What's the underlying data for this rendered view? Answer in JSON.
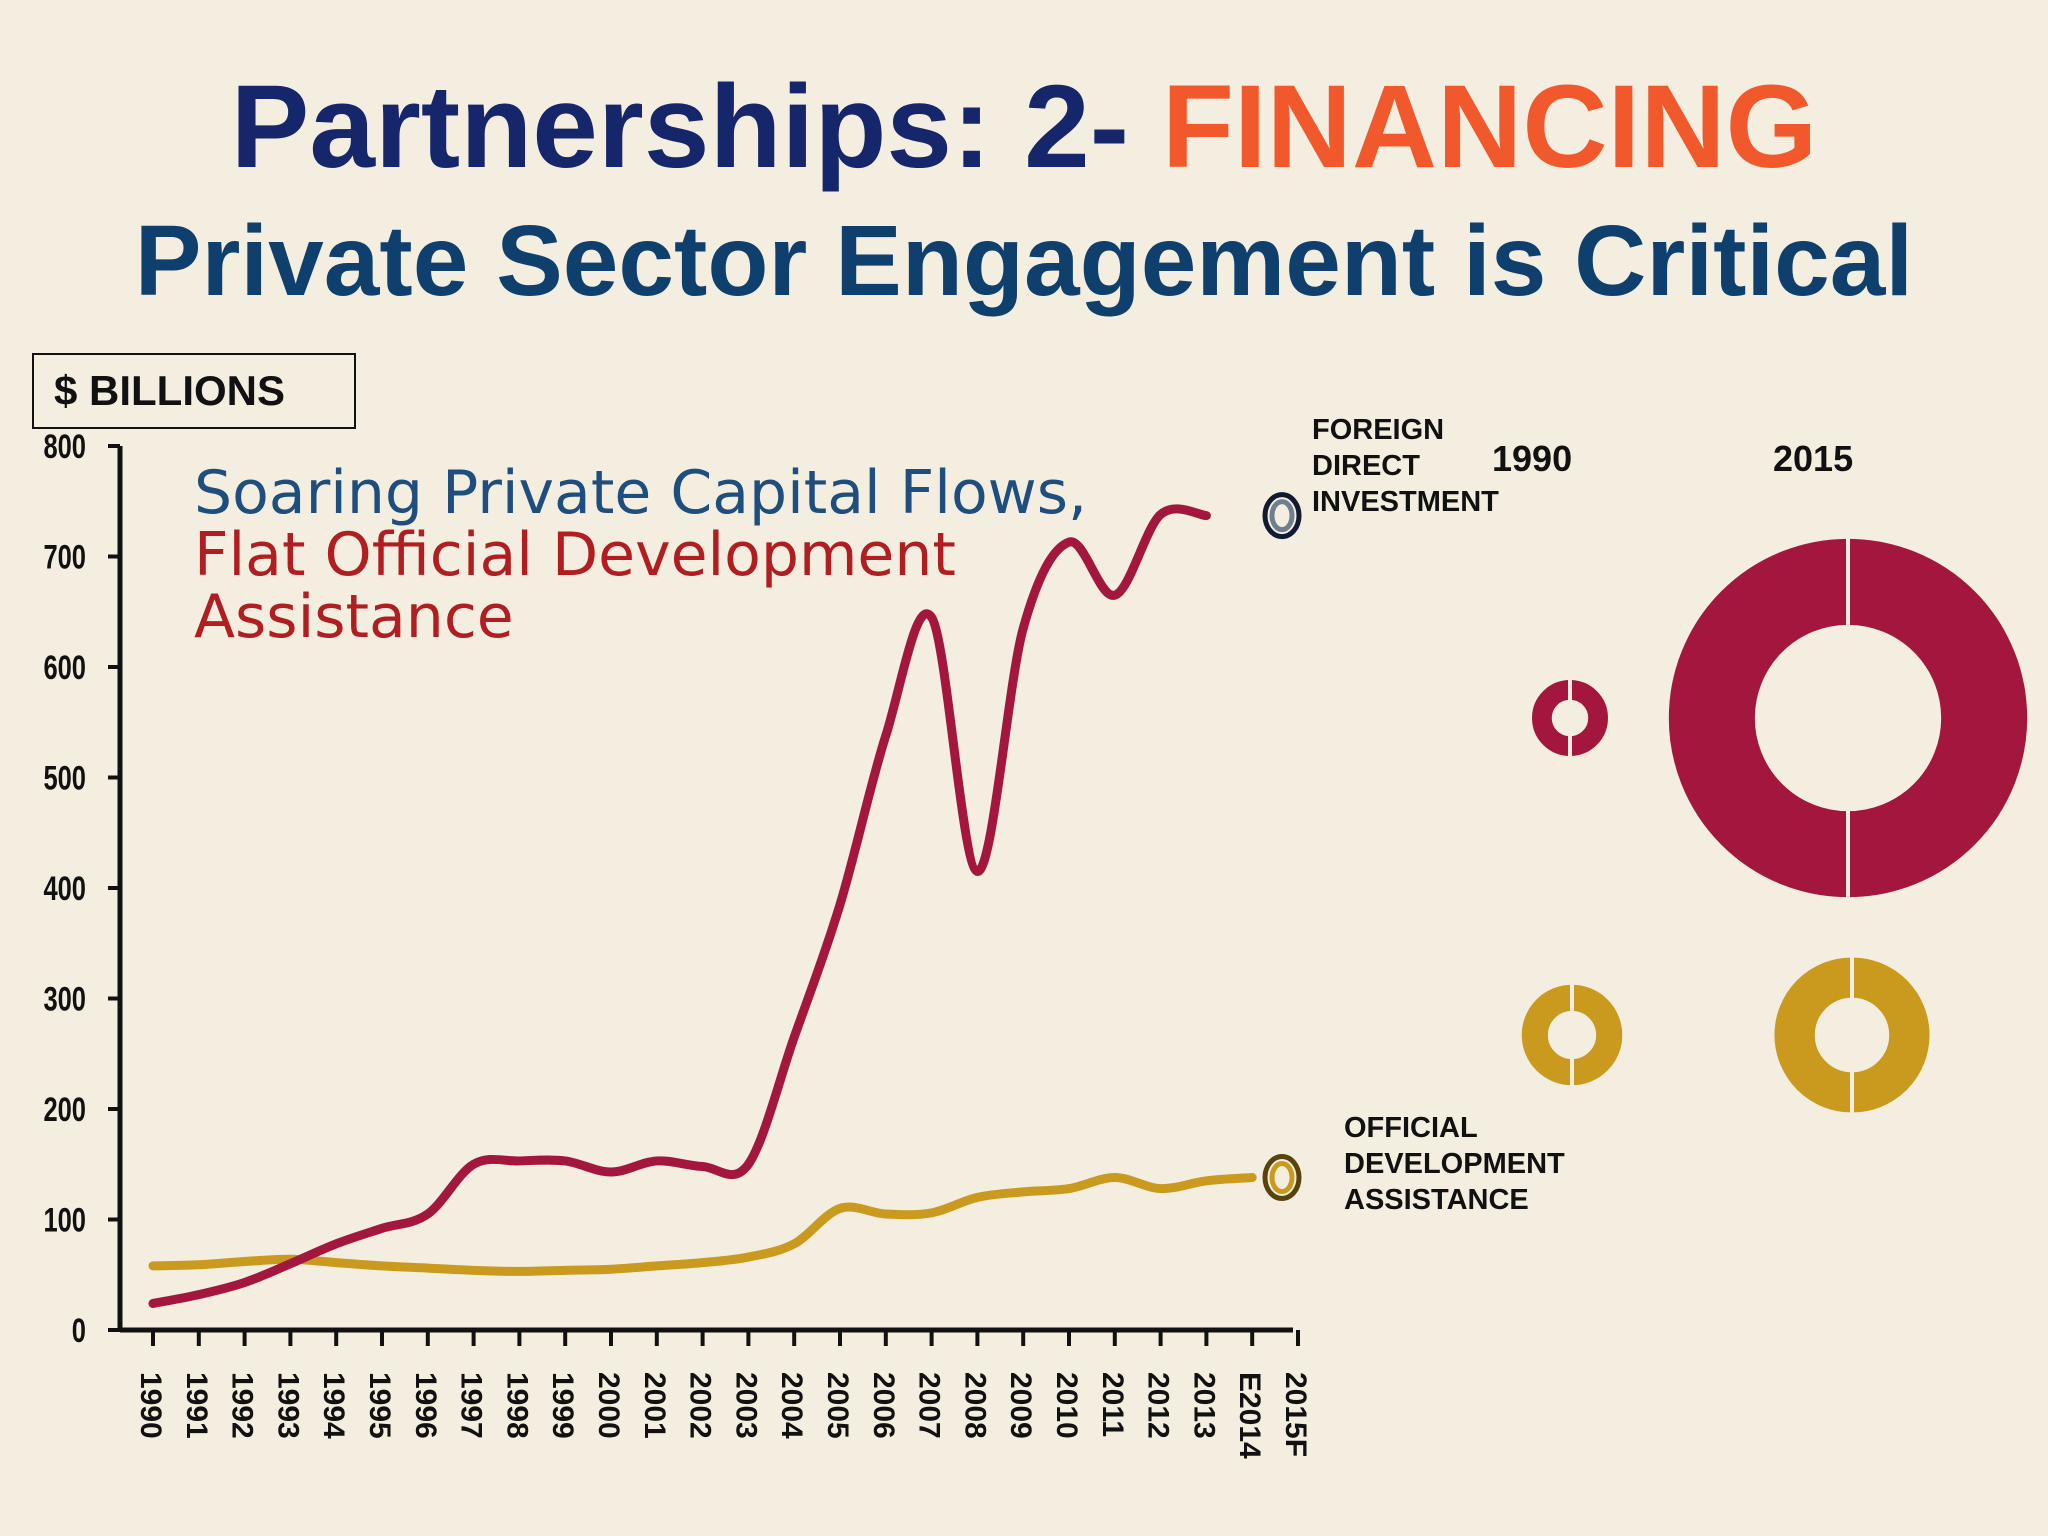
{
  "title": {
    "line1_prefix": "Partnerships: 2- ",
    "line1_accent": "FINANCING",
    "line2": "Private Sector Engagement is Critical"
  },
  "unit_label": "$ BILLIONS",
  "annotation": {
    "line1": "Soaring Private Capital Flows,",
    "line2": "Flat Official Development",
    "line3": "Assistance"
  },
  "labels": {
    "fdi": [
      "FOREIGN",
      "DIRECT",
      "INVESTMENT"
    ],
    "oda": [
      "OFFICIAL",
      "DEVELOPMENT",
      "ASSISTANCE"
    ]
  },
  "donut_years": [
    "1990",
    "2015"
  ],
  "colors": {
    "fdi": "#a3173e",
    "oda": "#c99a1e",
    "axis": "#111111",
    "title_blue": "#16266b",
    "title_orange": "#f1592c"
  },
  "chart_data": {
    "type": "line",
    "x": [
      "1990",
      "1991",
      "1992",
      "1993",
      "1994",
      "1995",
      "1996",
      "1997",
      "1998",
      "1999",
      "2000",
      "2001",
      "2002",
      "2003",
      "2004",
      "2005",
      "2006",
      "2007",
      "2008",
      "2009",
      "2010",
      "2011",
      "2012",
      "2013",
      "E2014",
      "2015F"
    ],
    "ylim": [
      0,
      800
    ],
    "yticks": [
      0,
      100,
      200,
      300,
      400,
      500,
      600,
      700,
      800
    ],
    "series": [
      {
        "name": "FOREIGN DIRECT INVESTMENT",
        "values": [
          24,
          32,
          43,
          60,
          78,
          92,
          105,
          150,
          153,
          153,
          143,
          153,
          148,
          150,
          265,
          385,
          538,
          645,
          415,
          635,
          713,
          665,
          738,
          737,
          null,
          null
        ]
      },
      {
        "name": "OFFICIAL DEVELOPMENT ASSISTANCE",
        "values": [
          58,
          59,
          62,
          64,
          61,
          58,
          56,
          54,
          53,
          54,
          55,
          58,
          61,
          66,
          78,
          110,
          105,
          106,
          120,
          125,
          128,
          138,
          128,
          135,
          138,
          null
        ]
      }
    ],
    "donuts": [
      {
        "series": "FOREIGN DIRECT INVESTMENT",
        "year": "1990",
        "value": 24
      },
      {
        "series": "FOREIGN DIRECT INVESTMENT",
        "year": "2015",
        "value": 737
      },
      {
        "series": "OFFICIAL DEVELOPMENT ASSISTANCE",
        "year": "1990",
        "value": 58
      },
      {
        "series": "OFFICIAL DEVELOPMENT ASSISTANCE",
        "year": "2015",
        "value": 138
      }
    ]
  }
}
